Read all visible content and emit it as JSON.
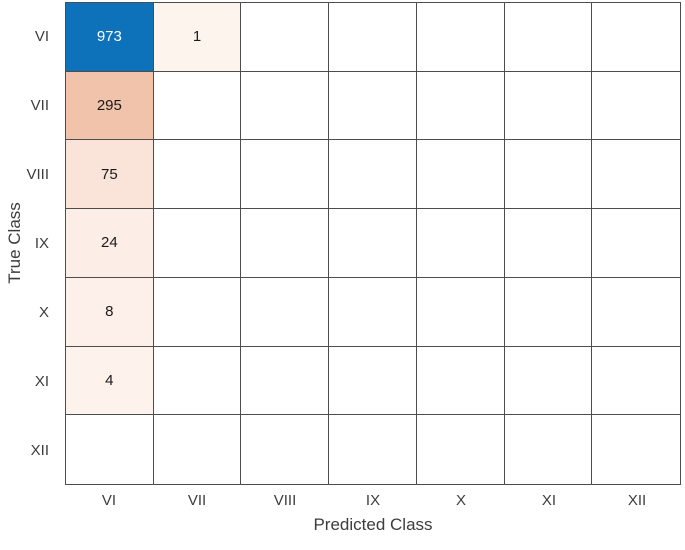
{
  "chart_data": {
    "type": "heatmap",
    "chart_kind": "confusion-matrix",
    "title": "",
    "xlabel": "Predicted Class",
    "ylabel": "True Class",
    "x_categories": [
      "VI",
      "VII",
      "VIII",
      "IX",
      "X",
      "XI",
      "XII"
    ],
    "y_categories": [
      "VI",
      "VII",
      "VIII",
      "IX",
      "X",
      "XI",
      "XII"
    ],
    "matrix": [
      [
        "973",
        "1",
        "",
        "",
        "",
        "",
        ""
      ],
      [
        "295",
        "",
        "",
        "",
        "",
        "",
        ""
      ],
      [
        "75",
        "",
        "",
        "",
        "",
        "",
        ""
      ],
      [
        "24",
        "",
        "",
        "",
        "",
        "",
        ""
      ],
      [
        "8",
        "",
        "",
        "",
        "",
        "",
        ""
      ],
      [
        "4",
        "",
        "",
        "",
        "",
        "",
        ""
      ],
      [
        "",
        "",
        "",
        "",
        "",
        "",
        ""
      ]
    ],
    "cell_colors": [
      [
        "#0d72ba",
        "#fdf4ee",
        "#ffffff",
        "#ffffff",
        "#ffffff",
        "#ffffff",
        "#ffffff"
      ],
      [
        "#f1c3ab",
        "#ffffff",
        "#ffffff",
        "#ffffff",
        "#ffffff",
        "#ffffff",
        "#ffffff"
      ],
      [
        "#fae3d9",
        "#ffffff",
        "#ffffff",
        "#ffffff",
        "#ffffff",
        "#ffffff",
        "#ffffff"
      ],
      [
        "#fcede6",
        "#ffffff",
        "#ffffff",
        "#ffffff",
        "#ffffff",
        "#ffffff",
        "#ffffff"
      ],
      [
        "#fdf0ea",
        "#ffffff",
        "#ffffff",
        "#ffffff",
        "#ffffff",
        "#ffffff",
        "#ffffff"
      ],
      [
        "#fdf2ec",
        "#ffffff",
        "#ffffff",
        "#ffffff",
        "#ffffff",
        "#ffffff",
        "#ffffff"
      ],
      [
        "#ffffff",
        "#ffffff",
        "#ffffff",
        "#ffffff",
        "#ffffff",
        "#ffffff",
        "#ffffff"
      ]
    ],
    "cell_text_colors": [
      [
        "#ffffff",
        "#1a1a1a",
        "#1a1a1a",
        "#1a1a1a",
        "#1a1a1a",
        "#1a1a1a",
        "#1a1a1a"
      ],
      [
        "#1a1a1a",
        "#1a1a1a",
        "#1a1a1a",
        "#1a1a1a",
        "#1a1a1a",
        "#1a1a1a",
        "#1a1a1a"
      ],
      [
        "#1a1a1a",
        "#1a1a1a",
        "#1a1a1a",
        "#1a1a1a",
        "#1a1a1a",
        "#1a1a1a",
        "#1a1a1a"
      ],
      [
        "#1a1a1a",
        "#1a1a1a",
        "#1a1a1a",
        "#1a1a1a",
        "#1a1a1a",
        "#1a1a1a",
        "#1a1a1a"
      ],
      [
        "#1a1a1a",
        "#1a1a1a",
        "#1a1a1a",
        "#1a1a1a",
        "#1a1a1a",
        "#1a1a1a",
        "#1a1a1a"
      ],
      [
        "#1a1a1a",
        "#1a1a1a",
        "#1a1a1a",
        "#1a1a1a",
        "#1a1a1a",
        "#1a1a1a",
        "#1a1a1a"
      ],
      [
        "#1a1a1a",
        "#1a1a1a",
        "#1a1a1a",
        "#1a1a1a",
        "#1a1a1a",
        "#1a1a1a",
        "#1a1a1a"
      ]
    ],
    "layout": {
      "grid": "on",
      "grid_line_color": "#4d4d4d",
      "background": "#ffffff",
      "diagonal_color": "#0d72ba",
      "offdiagonal_max_color": "#f1c3ab"
    }
  }
}
